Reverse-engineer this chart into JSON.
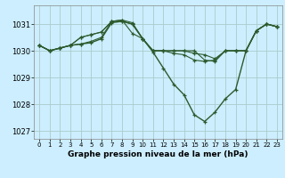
{
  "background_color": "#cceeff",
  "grid_color": "#aacccc",
  "line_color": "#2d5a2d",
  "title": "Graphe pression niveau de la mer (hPa)",
  "xlim": [
    -0.5,
    23.5
  ],
  "ylim": [
    1026.7,
    1031.7
  ],
  "yticks": [
    1027,
    1028,
    1029,
    1030,
    1031
  ],
  "xticks": [
    0,
    1,
    2,
    3,
    4,
    5,
    6,
    7,
    8,
    9,
    10,
    11,
    12,
    13,
    14,
    15,
    16,
    17,
    18,
    19,
    20,
    21,
    22,
    23
  ],
  "series": [
    [
      1030.2,
      1030.0,
      1030.1,
      1030.2,
      1030.25,
      1030.3,
      1030.45,
      1031.05,
      1031.1,
      1031.0,
      1030.45,
      1029.95,
      1029.35,
      1028.75,
      1028.35,
      1027.6,
      1027.35,
      1027.7,
      1028.2,
      1028.55,
      1030.0,
      1030.75,
      1031.0,
      1030.9
    ],
    [
      1030.2,
      1030.0,
      1030.1,
      1030.2,
      1030.25,
      1030.35,
      1030.5,
      1031.1,
      1031.1,
      1031.0,
      1030.45,
      1030.0,
      1030.0,
      1030.0,
      1030.0,
      1030.0,
      1029.65,
      1029.6,
      1030.0,
      1030.0,
      1030.0,
      1030.75,
      1031.0,
      1030.9
    ],
    [
      1030.2,
      1030.0,
      1030.1,
      1030.2,
      1030.5,
      1030.6,
      1030.7,
      1031.1,
      1031.15,
      1030.65,
      1030.45,
      1030.0,
      1030.0,
      1029.9,
      1029.85,
      1029.65,
      1029.6,
      1029.65,
      1030.0,
      1030.0,
      1030.0,
      1030.75,
      1031.0,
      1030.9
    ],
    [
      1030.2,
      1030.0,
      1030.1,
      1030.2,
      1030.5,
      1030.6,
      1030.7,
      1031.1,
      1031.15,
      1031.05,
      1030.45,
      1030.0,
      1030.0,
      1030.0,
      1030.0,
      1029.9,
      1029.85,
      1029.7,
      1030.0,
      1030.0,
      1030.0,
      1030.75,
      1031.0,
      1030.9
    ]
  ]
}
